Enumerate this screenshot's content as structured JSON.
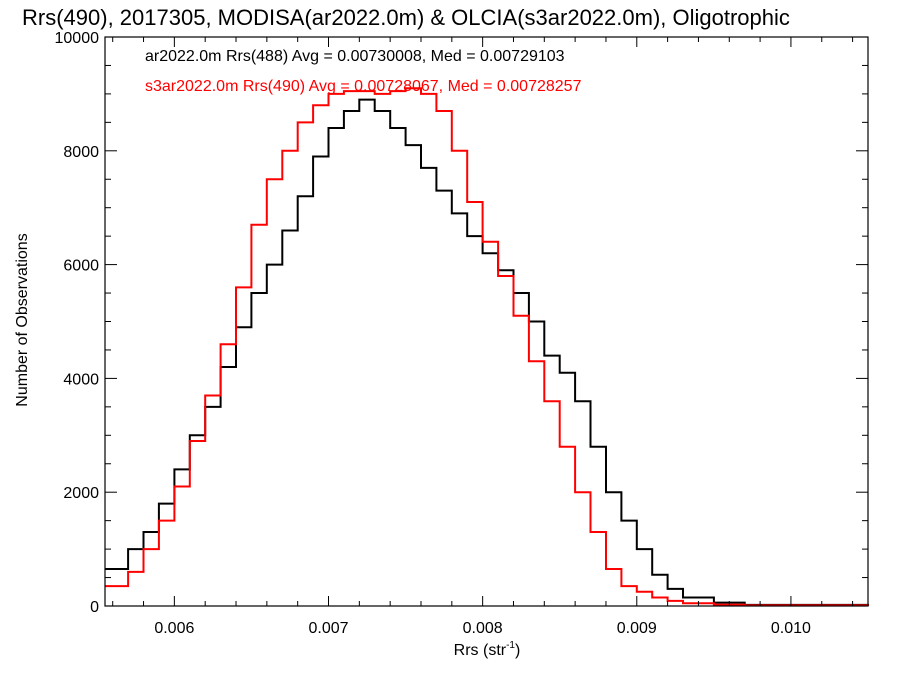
{
  "chart_data": {
    "type": "line",
    "title": "Rrs(490), 2017305, MODISA(ar2022.0m) & OLCIA(s3ar2022.0m), Oligotrophic",
    "xlabel": "Rrs (str",
    "xlabel_sup": "-1",
    "xlabel_suffix": ")",
    "ylabel": "Number of Observations",
    "xlim": [
      0.00555,
      0.0105
    ],
    "ylim": [
      0,
      10000
    ],
    "xticks": [
      0.006,
      0.007,
      0.008,
      0.009,
      0.01
    ],
    "xtick_labels": [
      "0.006",
      "0.007",
      "0.008",
      "0.009",
      "0.010"
    ],
    "yticks": [
      0,
      2000,
      4000,
      6000,
      8000,
      10000
    ],
    "ytick_labels": [
      "0",
      "2000",
      "4000",
      "6000",
      "8000",
      "10000"
    ],
    "grid": false,
    "step": true,
    "legend_position": "top-left",
    "series": [
      {
        "name": "ar2022.0m Rrs(488) Avg = 0.00730008, Med = 0.00729103",
        "color": "#000000",
        "x": [
          0.00555,
          0.0057,
          0.0058,
          0.0059,
          0.006,
          0.0061,
          0.0062,
          0.0063,
          0.0064,
          0.0065,
          0.0066,
          0.0067,
          0.0068,
          0.0069,
          0.007,
          0.0071,
          0.0072,
          0.0073,
          0.0074,
          0.0075,
          0.0076,
          0.0077,
          0.0078,
          0.0079,
          0.008,
          0.0081,
          0.0082,
          0.0083,
          0.0084,
          0.0085,
          0.0086,
          0.0087,
          0.0088,
          0.0089,
          0.009,
          0.0091,
          0.0092,
          0.0093,
          0.0095,
          0.0097,
          0.0105
        ],
        "values": [
          650,
          1000,
          1300,
          1800,
          2400,
          3000,
          3500,
          4200,
          4900,
          5500,
          6000,
          6600,
          7200,
          7900,
          8400,
          8700,
          8900,
          8700,
          8400,
          8100,
          7700,
          7300,
          6900,
          6500,
          6200,
          5900,
          5500,
          5000,
          4400,
          4100,
          3600,
          2800,
          2000,
          1500,
          1000,
          550,
          300,
          150,
          60,
          20,
          0
        ]
      },
      {
        "name": "s3ar2022.0m Rrs(490) Avg = 0.00728067, Med = 0.00728257",
        "color": "#ff0000",
        "x": [
          0.00555,
          0.0057,
          0.0058,
          0.0059,
          0.006,
          0.0061,
          0.0062,
          0.0063,
          0.0064,
          0.0065,
          0.0066,
          0.0067,
          0.0068,
          0.0069,
          0.007,
          0.0071,
          0.0072,
          0.0073,
          0.0074,
          0.0075,
          0.0076,
          0.0077,
          0.0078,
          0.0079,
          0.008,
          0.0081,
          0.0082,
          0.0083,
          0.0084,
          0.0085,
          0.0086,
          0.0087,
          0.0088,
          0.0089,
          0.009,
          0.0091,
          0.0092,
          0.0093,
          0.0095,
          0.0097,
          0.0105
        ],
        "values": [
          350,
          600,
          1000,
          1500,
          2100,
          2900,
          3700,
          4600,
          5600,
          6700,
          7500,
          8000,
          8500,
          8800,
          9000,
          9050,
          9050,
          9000,
          9050,
          9100,
          9000,
          8700,
          8000,
          7100,
          6400,
          5800,
          5100,
          4300,
          3600,
          2800,
          2000,
          1300,
          650,
          350,
          250,
          150,
          90,
          50,
          25,
          10,
          0
        ]
      }
    ]
  }
}
